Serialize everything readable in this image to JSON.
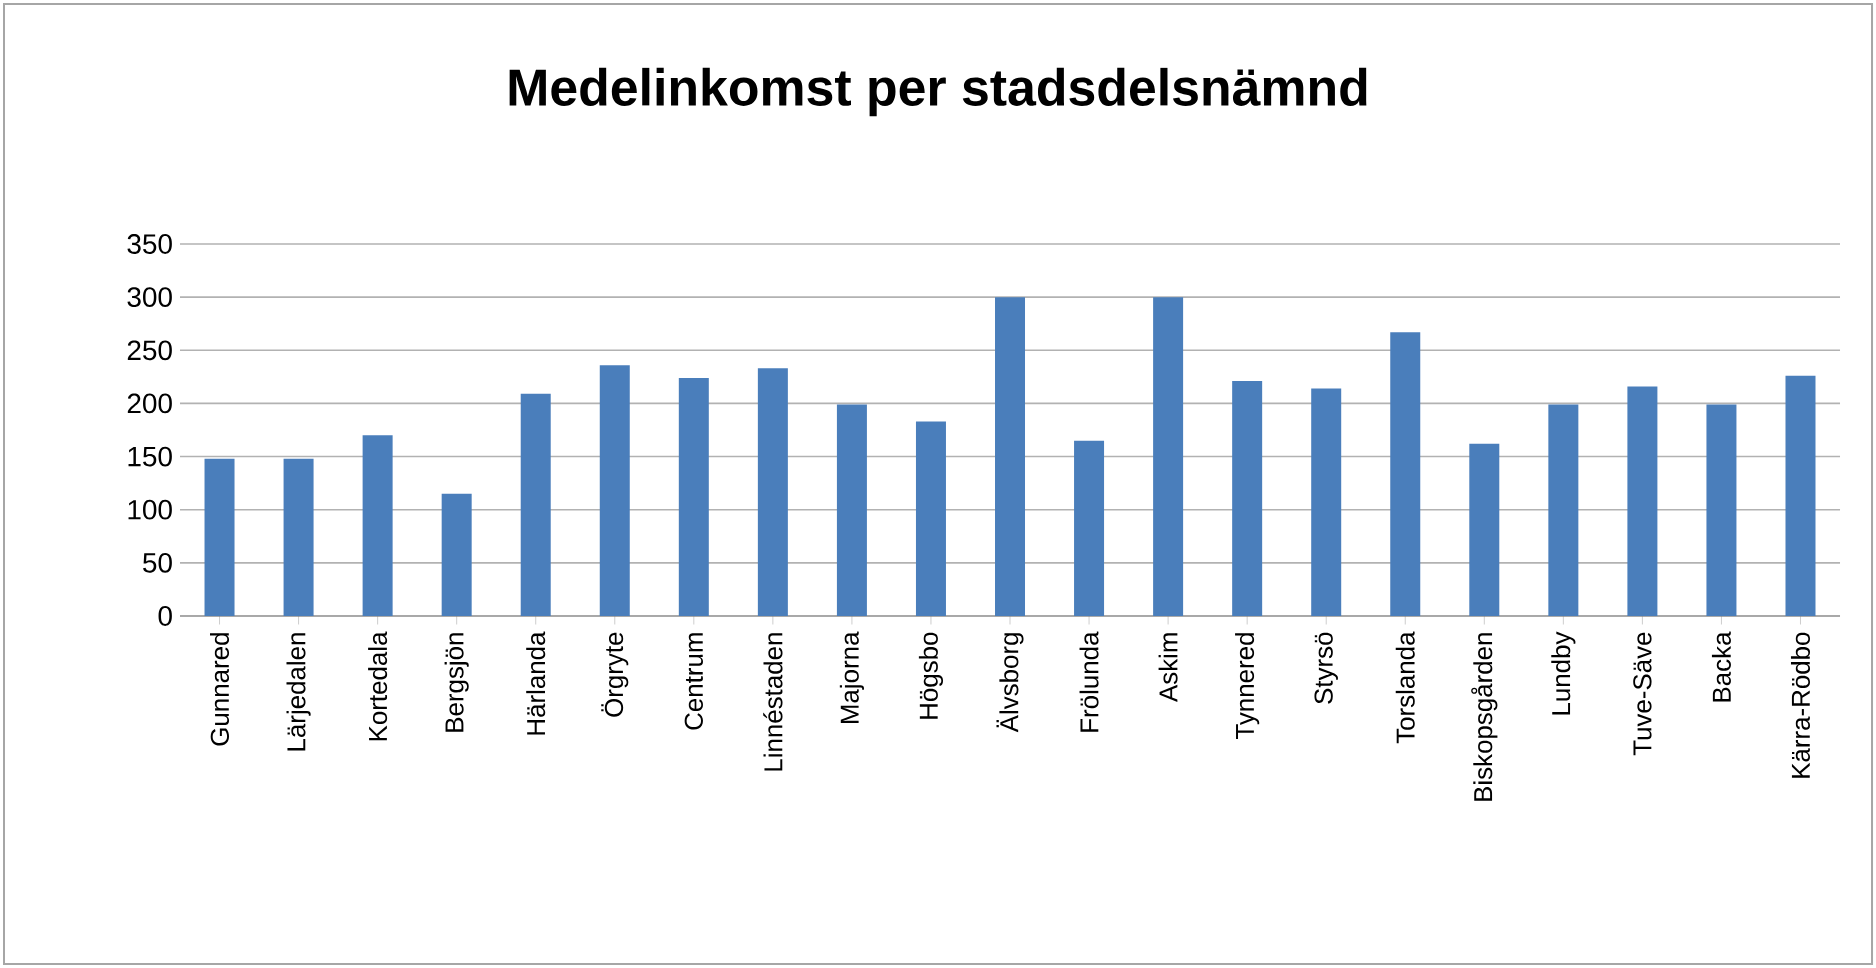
{
  "chart_data": {
    "type": "bar",
    "title": "Medelinkomst per stadsdelsnämnd",
    "categories": [
      "Gunnared",
      "Lärjedalen",
      "Kortedala",
      "Bergsjön",
      "Härlanda",
      "Örgryte",
      "Centrum",
      "Linnéstaden",
      "Majorna",
      "Högsbo",
      "Älvsborg",
      "Frölunda",
      "Askim",
      "Tynnered",
      "Styrsö",
      "Torslanda",
      "Biskopsgården",
      "Lundby",
      "Tuve-Säve",
      "Backa",
      "Kärra-Rödbo"
    ],
    "values": [
      148,
      148,
      170,
      115,
      209,
      236,
      224,
      233,
      199,
      183,
      300,
      165,
      300,
      221,
      214,
      267,
      162,
      199,
      216,
      199,
      226
    ],
    "color": "#4a7ebb",
    "ylim": [
      0,
      350
    ],
    "yticks": [
      0,
      50,
      100,
      150,
      200,
      250,
      300,
      350
    ],
    "grid": "y"
  }
}
